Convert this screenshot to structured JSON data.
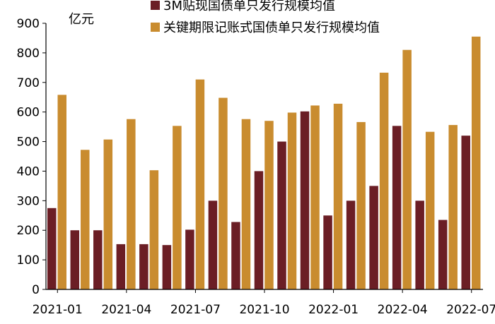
{
  "chart_data": {
    "type": "bar",
    "unit_label": "亿元",
    "ylim": [
      0,
      900
    ],
    "yticks": [
      0,
      100,
      200,
      300,
      400,
      500,
      600,
      700,
      800,
      900
    ],
    "grid": false,
    "legend_placement": "top",
    "categories": [
      "2021-01",
      "2021-02",
      "2021-03",
      "2021-04",
      "2021-05",
      "2021-06",
      "2021-07",
      "2021-08",
      "2021-09",
      "2021-10",
      "2021-11",
      "2021-12",
      "2022-01",
      "2022-02",
      "2022-03",
      "2022-04",
      "2022-05",
      "2022-06",
      "2022-07"
    ],
    "x_tick_labels": [
      {
        "index": 0,
        "label": "2021-01"
      },
      {
        "index": 3,
        "label": "2021-04"
      },
      {
        "index": 6,
        "label": "2021-07"
      },
      {
        "index": 9,
        "label": "2021-10"
      },
      {
        "index": 12,
        "label": "2022-01"
      },
      {
        "index": 15,
        "label": "2022-04"
      },
      {
        "index": 18,
        "label": "2022-07"
      }
    ],
    "series": [
      {
        "name": "3M贴现国债单只发行规模均值",
        "color": "#6b1e25",
        "values": [
          275,
          200,
          200,
          153,
          153,
          150,
          202,
          300,
          228,
          400,
          500,
          602,
          250,
          300,
          350,
          553,
          300,
          235,
          520
        ]
      },
      {
        "name": "关键期限记账式国债单只发行规模均值",
        "color": "#c98c2f",
        "values": [
          658,
          472,
          507,
          576,
          403,
          553,
          710,
          648,
          576,
          570,
          598,
          622,
          628,
          566,
          733,
          810,
          533,
          556,
          855
        ]
      }
    ]
  }
}
